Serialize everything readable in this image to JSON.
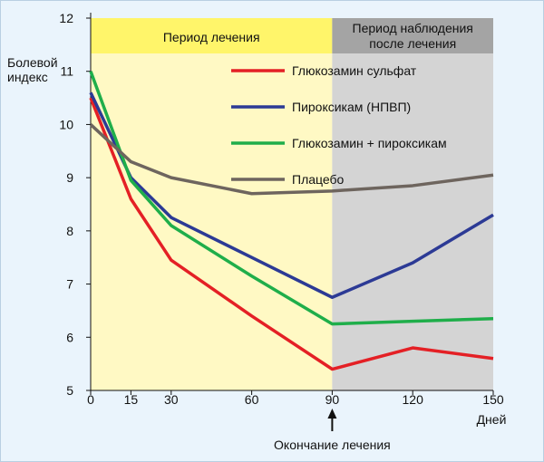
{
  "chart_data": {
    "type": "line",
    "title": "",
    "ylabel_lines": [
      "Болевой",
      "индекс"
    ],
    "xlabel": "Дней",
    "annotation": "Окончание лечения",
    "annotation_x": 90,
    "x": [
      0,
      15,
      30,
      60,
      90,
      120,
      150
    ],
    "x_ticks": [
      0,
      15,
      30,
      60,
      90,
      120,
      150
    ],
    "y_ticks": [
      5,
      6,
      7,
      8,
      9,
      10,
      11,
      12
    ],
    "xlim": [
      0,
      150
    ],
    "ylim": [
      5,
      12
    ],
    "grid": false,
    "legend_position": "top-right",
    "regions": [
      {
        "label": "Период лечения",
        "from": 0,
        "to": 90,
        "header_color": "#fff56a",
        "body_color": "#fff9c4"
      },
      {
        "label": "Период наблюдения после лечения",
        "label_lines": [
          "Период наблюдения",
          "после лечения"
        ],
        "from": 90,
        "to": 150,
        "header_color": "#a4a4a4",
        "body_color": "#d4d4d4"
      }
    ],
    "series": [
      {
        "name": "Глюкозамин сульфат",
        "color": "#e42025",
        "values": [
          10.5,
          8.6,
          7.45,
          6.4,
          5.4,
          5.8,
          5.6
        ]
      },
      {
        "name": "Пироксикам (НПВП)",
        "color": "#2c3a95",
        "values": [
          10.6,
          9.0,
          8.25,
          7.5,
          6.75,
          7.4,
          8.3
        ]
      },
      {
        "name": "Глюкозамин + пироксикам",
        "color": "#1fae4a",
        "values": [
          11.0,
          8.95,
          8.1,
          7.15,
          6.25,
          6.3,
          6.35
        ]
      },
      {
        "name": "Плацебо",
        "color": "#6e655e",
        "values": [
          10.0,
          9.3,
          9.0,
          8.7,
          8.75,
          8.85,
          9.05
        ]
      }
    ]
  }
}
